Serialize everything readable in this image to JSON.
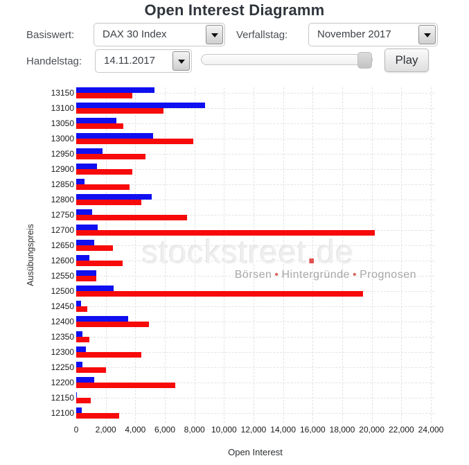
{
  "title": "Open Interest Diagramm",
  "controls": {
    "basiswert_label": "Basiswert:",
    "basiswert_value": "DAX 30 Index",
    "verfallstag_label": "Verfallstag:",
    "verfallstag_value": "November 2017",
    "handelstag_label": "Handelstag:",
    "handelstag_value": "14.11.2017",
    "play_label": "Play"
  },
  "watermark": {
    "brand": "stockstreet",
    "dot": ".",
    "tld": "de",
    "separator": "•",
    "tagline_parts": [
      "Börsen",
      "Hintergründe",
      "Prognosen"
    ]
  },
  "chart_data": {
    "type": "bar",
    "orientation": "horizontal",
    "title": "Open Interest Diagramm",
    "xlabel": "Open Interest",
    "ylabel": "Ausübungspreis",
    "xlim": [
      0,
      24000
    ],
    "grid": "dashed",
    "legend": "none",
    "x_ticks": [
      0,
      2000,
      4000,
      6000,
      8000,
      10000,
      12000,
      14000,
      16000,
      18000,
      20000,
      22000,
      24000
    ],
    "x_tick_labels": [
      "0",
      "2,000",
      "4,000",
      "6,000",
      "8,000",
      "10,000",
      "12,000",
      "14,000",
      "16,000",
      "18,000",
      "20,000",
      "22,000",
      "24,000"
    ],
    "categories": [
      "13150",
      "13100",
      "13050",
      "13000",
      "12950",
      "12900",
      "12850",
      "12800",
      "12750",
      "12700",
      "12650",
      "12600",
      "12550",
      "12500",
      "12450",
      "12400",
      "12350",
      "12300",
      "12250",
      "12200",
      "12150",
      "12100"
    ],
    "series": [
      {
        "name": "blue",
        "color": "#0f0ff0",
        "values": [
          5300,
          8700,
          2700,
          5200,
          1800,
          1400,
          550,
          5100,
          1100,
          1450,
          1200,
          870,
          1340,
          2550,
          330,
          3500,
          440,
          640,
          440,
          1200,
          50,
          360
        ]
      },
      {
        "name": "red",
        "color": "#f70a0a",
        "values": [
          3800,
          5900,
          3200,
          7900,
          4700,
          3800,
          3600,
          4400,
          7500,
          20200,
          2500,
          3150,
          1340,
          19400,
          750,
          4900,
          890,
          4400,
          2000,
          6700,
          1000,
          2900
        ]
      }
    ]
  }
}
